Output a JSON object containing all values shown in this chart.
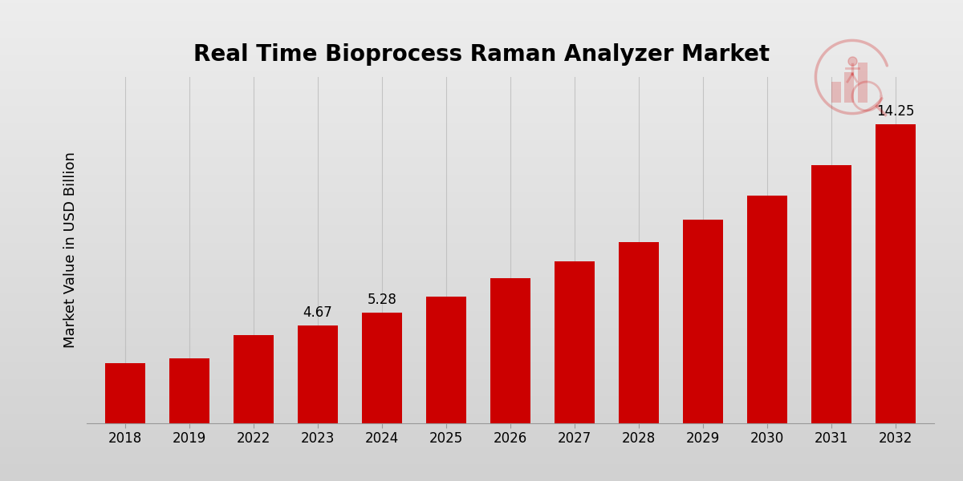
{
  "title": "Real Time Bioprocess Raman Analyzer Market",
  "ylabel": "Market Value in USD Billion",
  "categories": [
    "2018",
    "2019",
    "2022",
    "2023",
    "2024",
    "2025",
    "2026",
    "2027",
    "2028",
    "2029",
    "2030",
    "2031",
    "2032"
  ],
  "values": [
    2.85,
    3.1,
    4.2,
    4.67,
    5.28,
    6.05,
    6.9,
    7.7,
    8.65,
    9.7,
    10.85,
    12.3,
    14.25
  ],
  "bar_color": "#CC0000",
  "bg_top": "#E8E8E8",
  "bg_bottom": "#D0D0D0",
  "grid_color": "#BBBBBB",
  "title_fontsize": 20,
  "label_fontsize": 13,
  "tick_fontsize": 12,
  "annot_fontsize": 12,
  "annotations": {
    "2023": "4.67",
    "2024": "5.28",
    "2032": "14.25"
  },
  "ylim": [
    0,
    16.5
  ],
  "bottom_bar_color": "#CC0000"
}
